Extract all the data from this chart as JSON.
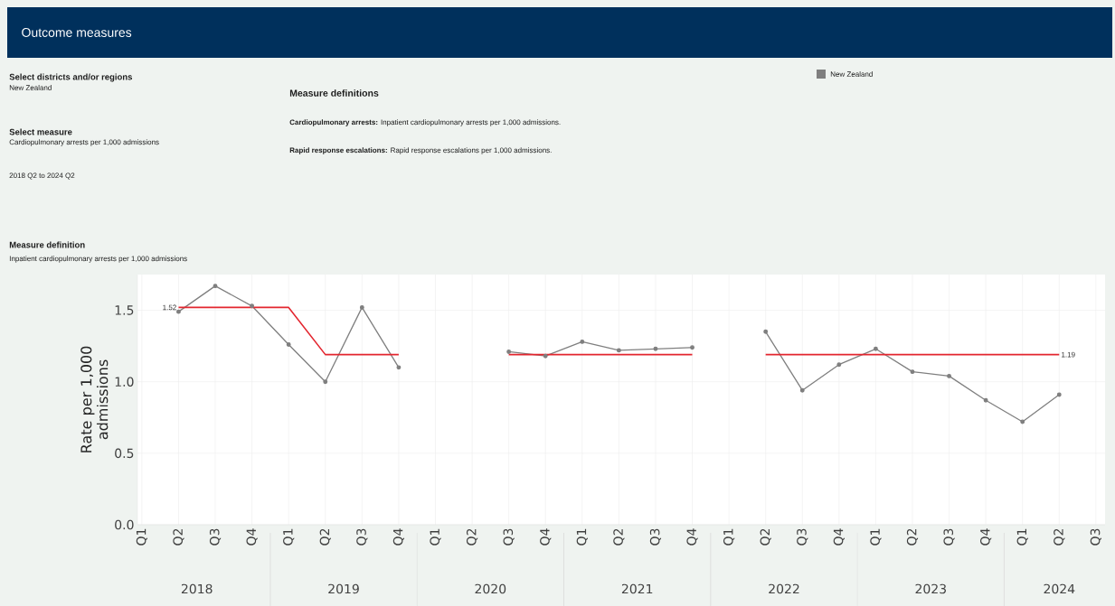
{
  "chart_data": {
    "type": "line",
    "title": "Outcome measures",
    "subtitle": "Inpatient cardiopulmonary arrests per 1,000 admissions",
    "ylabel": "Rate per 1,000 admissions",
    "categories": [
      "Q1",
      "Q2",
      "Q3",
      "Q4",
      "Q1",
      "Q2",
      "Q3",
      "Q4",
      "Q1",
      "Q2",
      "Q3",
      "Q4",
      "Q1",
      "Q2",
      "Q3",
      "Q4",
      "Q1",
      "Q2",
      "Q3",
      "Q4",
      "Q1",
      "Q2",
      "Q3",
      "Q4",
      "Q1",
      "Q2",
      "Q3"
    ],
    "series": [
      {
        "name": "New Zealand",
        "color": "#7f7f7f",
        "marker": "circle",
        "values": [
          null,
          1.49,
          1.67,
          1.53,
          1.26,
          1.0,
          1.52,
          1.1,
          null,
          null,
          1.21,
          1.18,
          1.28,
          1.22,
          1.23,
          1.24,
          null,
          1.35,
          0.94,
          1.12,
          1.23,
          1.07,
          1.04,
          0.87,
          0.72,
          0.91,
          null
        ]
      },
      {
        "color": "#e3262f",
        "marker": "none",
        "values": [
          null,
          1.52,
          1.52,
          1.52,
          1.52,
          1.19,
          1.19,
          1.19,
          null,
          null,
          1.19,
          1.19,
          1.19,
          1.19,
          1.19,
          1.19,
          null,
          1.19,
          1.19,
          1.19,
          1.19,
          1.19,
          1.19,
          1.19,
          1.19,
          1.19,
          null
        ],
        "value_labels": [
          null,
          "1.52",
          null,
          null,
          null,
          null,
          null,
          null,
          null,
          null,
          null,
          null,
          null,
          null,
          null,
          null,
          null,
          null,
          null,
          null,
          null,
          null,
          null,
          null,
          null,
          "1.19",
          null
        ]
      }
    ],
    "ylim": [
      0,
      1.75
    ],
    "yticks": [
      {
        "value": 0,
        "label": "0.0"
      },
      {
        "value": 0.5,
        "label": "0.5"
      },
      {
        "value": 1.0,
        "label": "1.0"
      },
      {
        "value": 1.5,
        "label": "1.5"
      }
    ],
    "grid": true,
    "legend": "top right",
    "line_style": "solid",
    "annotations": [
      "Select districts and/or regions",
      "New Zealand",
      "Select measure",
      "Cardiopulmonary arrests per 1,000 admissions",
      "2018 Q2 to 2024 Q2",
      "Measure definitions",
      "**Cardiopulmonary arrests:** Inpatient cardiopulmonary arrests per 1,000 admissions.",
      "**Rapid response escalations:** Rapid response escalations per 1,000 admissions.",
      "Measure definition",
      "2018",
      "2019",
      "2020",
      "2021",
      "2022",
      "2023",
      "2024"
    ]
  }
}
